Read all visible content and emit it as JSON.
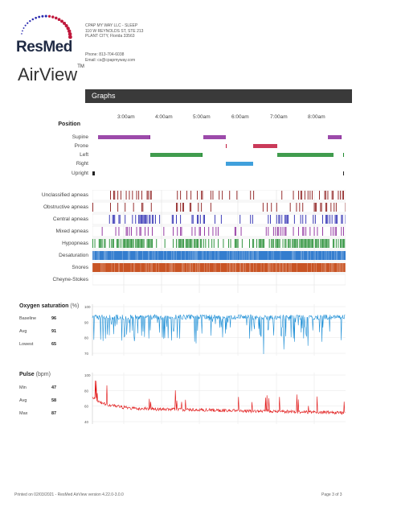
{
  "brand": {
    "logo": "ResMed",
    "product": "AirView",
    "trademark": "TM"
  },
  "provider": {
    "lines": [
      "CPAP MY WAY LLC - SLEEP",
      "110 W REYNOLDS ST, STE 213",
      "PLANT CITY, Florida 33563"
    ],
    "phone": "Phone: 813-704-6038",
    "email": "Email: cs@cpapmyway.com"
  },
  "section_header": "Graphs",
  "hours": [
    "3:00am",
    "4:00am",
    "5:00am",
    "6:00am",
    "7:00am",
    "8:00am"
  ],
  "position": {
    "title": "Position",
    "rows": [
      "Supine",
      "Prone",
      "Left",
      "Right",
      "Upright"
    ]
  },
  "events": {
    "rows": [
      "Unclassified apneas",
      "Obstructive apneas",
      "Central apneas",
      "Mixed apneas",
      "Hypopneas",
      "Desaturation",
      "Snores",
      "Cheyne-Stokes"
    ]
  },
  "oxygen": {
    "title": "Oxygen saturation",
    "unit": "(%)",
    "stats": [
      {
        "label": "Baseline",
        "value": "96"
      },
      {
        "label": "Avg",
        "value": "91"
      },
      {
        "label": "Lowest",
        "value": "65"
      }
    ],
    "yticks": [
      "100",
      "90",
      "80",
      "70"
    ]
  },
  "pulse": {
    "title": "Pulse",
    "unit": "(bpm)",
    "stats": [
      {
        "label": "Min",
        "value": "47"
      },
      {
        "label": "Avg",
        "value": "58"
      },
      {
        "label": "Max",
        "value": "87"
      }
    ],
    "yticks": [
      "100",
      "80",
      "60",
      "40"
    ]
  },
  "footer": {
    "left": "Printed on 02/03/2021 - ResMed AirView version 4.22.0-3.0.0",
    "right": "Page 3 of 3"
  },
  "colors": {
    "supine": "#8b2a9b",
    "prone": "#c0183c",
    "left": "#1f8a2e",
    "right": "#1e8fd6",
    "upright": "#222222",
    "unclassified": "#8b1a1a",
    "obstructive": "#8b1a1a",
    "central": "#2a2ab0",
    "mixed": "#8b2a9b",
    "hypopnea": "#1f8a2e",
    "desaturation": "#1e6fc9",
    "snores": "#c2410c",
    "spo2": "#1e8fd6",
    "pulse": "#e01010",
    "header_bg": "#3a3a3a"
  }
}
